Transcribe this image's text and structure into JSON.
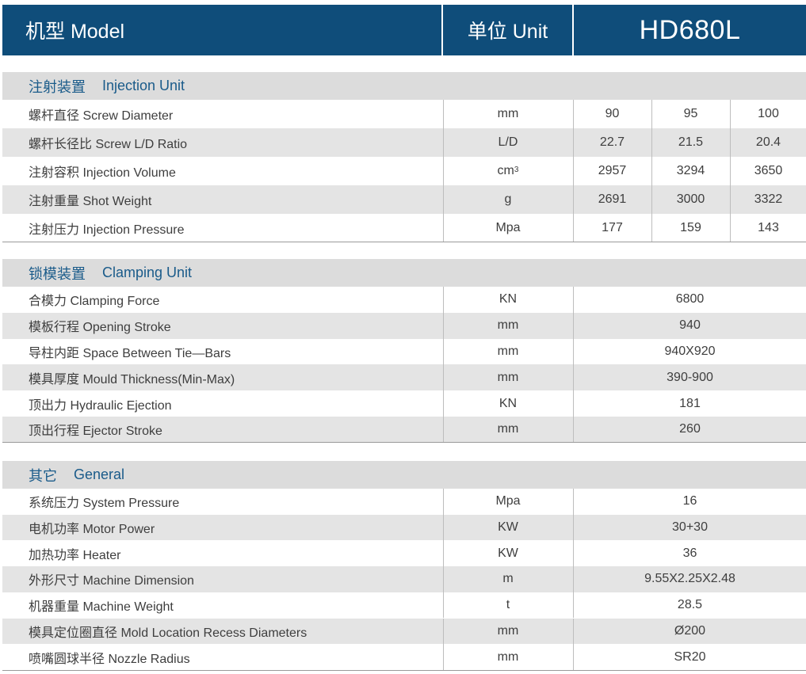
{
  "header": {
    "model": "机型 Model",
    "unit": "单位 Unit",
    "name": "HD680L"
  },
  "sections": [
    {
      "zh": "注射装置",
      "en": "Injection Unit",
      "rows": [
        {
          "label": "螺杆直径 Screw Diameter",
          "unit": "mm",
          "values": [
            "90",
            "95",
            "100"
          ]
        },
        {
          "label": "螺杆长径比 Screw L/D Ratio",
          "unit": "L/D",
          "values": [
            "22.7",
            "21.5",
            "20.4"
          ]
        },
        {
          "label": "注射容积 Injection Volume",
          "unit": "cm",
          "unit_sup": "3",
          "values": [
            "2957",
            "3294",
            "3650"
          ]
        },
        {
          "label": "注射重量 Shot Weight",
          "unit": "g",
          "values": [
            "2691",
            "3000",
            "3322"
          ]
        },
        {
          "label": "注射压力 Injection Pressure",
          "unit": "Mpa",
          "values": [
            "177",
            "159",
            "143"
          ]
        }
      ]
    },
    {
      "zh": "锁模装置",
      "en": "Clamping Unit",
      "rows": [
        {
          "label": "合模力 Clamping Force",
          "unit": "KN",
          "value": "6800"
        },
        {
          "label": "模板行程 Opening Stroke",
          "unit": "mm",
          "value": "940"
        },
        {
          "label": "导柱内距 Space Between Tie—Bars",
          "unit": "mm",
          "value": "940X920"
        },
        {
          "label": "模具厚度 Mould Thickness(Min-Max)",
          "unit": "mm",
          "value": "390-900"
        },
        {
          "label": "顶出力 Hydraulic Ejection",
          "unit": "KN",
          "value": "181"
        },
        {
          "label": "顶出行程 Ejector Stroke",
          "unit": "mm",
          "value": "260"
        }
      ]
    },
    {
      "zh": "其它",
      "en": "General",
      "rows": [
        {
          "label": "系统压力 System Pressure",
          "unit": "Mpa",
          "value": "16"
        },
        {
          "label": "电机功率 Motor Power",
          "unit": "KW",
          "value": "30+30"
        },
        {
          "label": "加热功率 Heater",
          "unit": "KW",
          "value": "36"
        },
        {
          "label": "外形尺寸 Machine Dimension",
          "unit": "m",
          "value": "9.55X2.25X2.48"
        },
        {
          "label": "机器重量 Machine Weight",
          "unit": "t",
          "value": "28.5"
        },
        {
          "label": "模具定位圈直径 Mold Location Recess Diameters",
          "unit": "mm",
          "value": "Ø200"
        },
        {
          "label": "喷嘴圆球半径 Nozzle Radius",
          "unit": "mm",
          "value": "SR20"
        }
      ]
    }
  ]
}
